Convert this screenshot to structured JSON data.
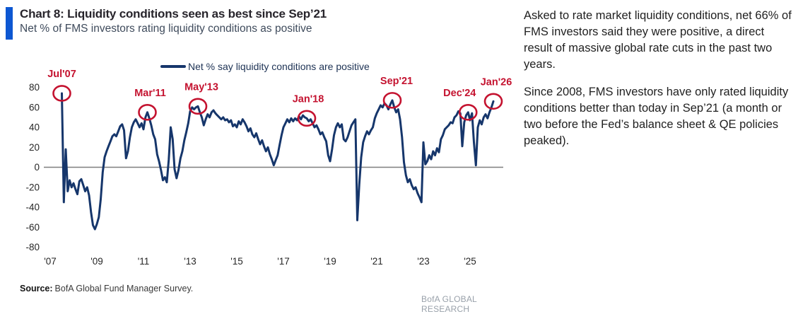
{
  "header": {
    "title": "Chart 8: Liquidity conditions seen as best since Sep’21",
    "subtitle": "Net % of FMS investors rating liquidity conditions as positive"
  },
  "legend": {
    "label": "Net % say liquidity conditions are positive"
  },
  "source": {
    "prefix": "Source:",
    "text": "BofA Global Fund Manager Survey."
  },
  "branding": "BofA GLOBAL RESEARCH",
  "commentary": {
    "para1": "Asked to rate market liquidity conditions, net 66% of FMS investors said they were positive, a direct result of massive global rate cuts in the past two years.",
    "para2": "Since 2008, FMS investors have only rated liquidity conditions better than today in Sep’21 (a month or two before the Fed’s balance sheet & QE policies peaked)."
  },
  "colors": {
    "line": "#16366b",
    "annotation_red": "#c4122f",
    "accent_bar": "#0d57d2",
    "zero_line": "#7f7f7f",
    "axis_text": "#262626",
    "brand_gray": "#99a1aa"
  },
  "chart_data": {
    "type": "line",
    "title": "Chart 8: Liquidity conditions seen as best since Sep'21",
    "xlabel": "",
    "ylabel": "Net % of FMS investors rating liquidity conditions as positive",
    "ylim": [
      -80,
      80
    ],
    "y_ticks": [
      80,
      60,
      40,
      20,
      0,
      -20,
      -40,
      -60,
      -80
    ],
    "x_tick_labels": [
      "'07",
      "'09",
      "'11",
      "'13",
      "'15",
      "'17",
      "'19",
      "'21",
      "'23",
      "'25"
    ],
    "x_tick_interval_months": 24,
    "frequency": "monthly",
    "start": "Jul 2007",
    "start_month_offset": 6,
    "grid": false,
    "legend_position": "top-center",
    "series": [
      {
        "name": "Net % say liquidity conditions are positive",
        "values": [
          74,
          -35,
          18,
          -24,
          -13,
          -20,
          -16,
          -22,
          -27,
          -14,
          -12,
          -18,
          -24,
          -20,
          -28,
          -45,
          -58,
          -62,
          -57,
          -50,
          -32,
          -5,
          10,
          16,
          21,
          26,
          31,
          33,
          31,
          36,
          41,
          43,
          37,
          9,
          16,
          30,
          40,
          45,
          48,
          44,
          40,
          44,
          38,
          50,
          55,
          49,
          42,
          33,
          28,
          13,
          6,
          -3,
          -13,
          -10,
          -15,
          8,
          40,
          28,
          -2,
          -11,
          -3,
          9,
          16,
          27,
          35,
          44,
          56,
          60,
          58,
          60,
          61,
          55,
          50,
          42,
          48,
          53,
          50,
          55,
          57,
          54,
          52,
          50,
          48,
          50,
          47,
          48,
          45,
          47,
          41,
          43,
          40,
          46,
          43,
          48,
          45,
          41,
          36,
          39,
          33,
          30,
          34,
          28,
          23,
          27,
          21,
          16,
          20,
          13,
          8,
          2,
          7,
          12,
          22,
          32,
          40,
          44,
          48,
          45,
          49,
          46,
          49,
          47,
          51,
          48,
          52,
          50,
          49,
          46,
          48,
          44,
          40,
          42,
          38,
          33,
          35,
          30,
          26,
          12,
          6,
          18,
          32,
          40,
          44,
          40,
          43,
          28,
          26,
          30,
          36,
          42,
          45,
          48,
          -53,
          -17,
          10,
          25,
          31,
          36,
          33,
          37,
          40,
          49,
          54,
          58,
          62,
          60,
          64,
          62,
          58,
          63,
          67,
          60,
          55,
          58,
          48,
          30,
          5,
          -8,
          -15,
          -12,
          -18,
          -22,
          -20,
          -26,
          -30,
          -35,
          25,
          3,
          6,
          12,
          8,
          16,
          12,
          19,
          15,
          28,
          32,
          38,
          40,
          42,
          45,
          44,
          50,
          52,
          56,
          54,
          21,
          45,
          52,
          55,
          47,
          54,
          25,
          2,
          40,
          47,
          43,
          50,
          53,
          49,
          55,
          60,
          66
        ]
      }
    ],
    "annotations": [
      {
        "label": "Jul'07",
        "month_index": 0,
        "value": 74,
        "dx": 0
      },
      {
        "label": "Mar'11",
        "month_index": 44,
        "value": 55,
        "dx": 4
      },
      {
        "label": "May'13",
        "month_index": 70,
        "value": 61,
        "dx": 5
      },
      {
        "label": "Jan'18",
        "month_index": 126,
        "value": 49,
        "dx": 2
      },
      {
        "label": "Sep'21",
        "month_index": 170,
        "value": 67,
        "dx": 6
      },
      {
        "label": "Dec'24",
        "month_index": 209,
        "value": 55,
        "dx": -12
      },
      {
        "label": "Jan'26",
        "month_index": 222,
        "value": 66,
        "dx": 4
      }
    ]
  }
}
